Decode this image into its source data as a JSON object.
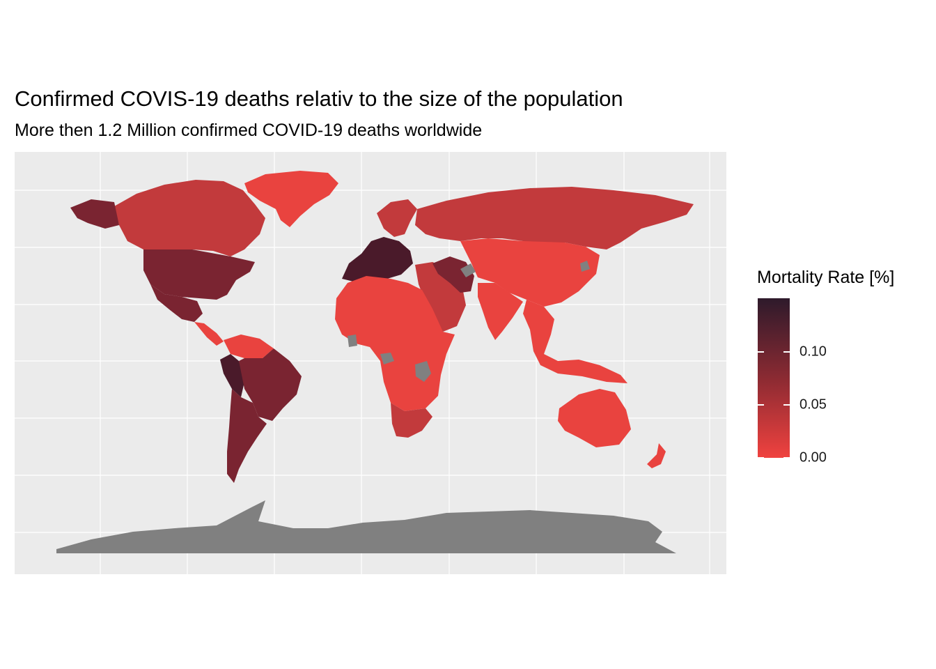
{
  "title": "Confirmed COVIS-19 deaths relativ to the size of the population",
  "subtitle": "More then 1.2 Million confirmed COVID-19 deaths worldwide",
  "legend": {
    "title": "Mortality Rate [%]",
    "labels": [
      "0.10",
      "0.05",
      "0.00"
    ],
    "gradient_top": "#2e1a2b",
    "gradient_mid": "#8b2a32",
    "gradient_bottom": "#f0423f"
  },
  "colors": {
    "panel_background": "#ebebeb",
    "gridline": "#ffffff",
    "no_data": "#808080",
    "low": "#e9433f",
    "medium": "#c23a3c",
    "high": "#7a2431",
    "very_high": "#4a1a2a"
  },
  "map_regions": [
    {
      "name": "Alaska (USA)",
      "rate_class": "high"
    },
    {
      "name": "Canada",
      "rate_class": "medium"
    },
    {
      "name": "Greenland",
      "rate_class": "low"
    },
    {
      "name": "USA",
      "rate_class": "high"
    },
    {
      "name": "Mexico",
      "rate_class": "high"
    },
    {
      "name": "Central America",
      "rate_class": "low"
    },
    {
      "name": "Northern South America",
      "rate_class": "low"
    },
    {
      "name": "Brazil",
      "rate_class": "high"
    },
    {
      "name": "Peru",
      "rate_class": "very_high"
    },
    {
      "name": "Argentina",
      "rate_class": "high"
    },
    {
      "name": "Western Europe",
      "rate_class": "very_high"
    },
    {
      "name": "Scandinavia",
      "rate_class": "medium"
    },
    {
      "name": "Russia",
      "rate_class": "medium"
    },
    {
      "name": "China",
      "rate_class": "low"
    },
    {
      "name": "India",
      "rate_class": "low"
    },
    {
      "name": "Iran",
      "rate_class": "high"
    },
    {
      "name": "Middle East",
      "rate_class": "medium"
    },
    {
      "name": "Africa",
      "rate_class": "low"
    },
    {
      "name": "South Africa",
      "rate_class": "medium"
    },
    {
      "name": "Southeast Asia",
      "rate_class": "low"
    },
    {
      "name": "Australia",
      "rate_class": "low"
    },
    {
      "name": "New Zealand",
      "rate_class": "low"
    },
    {
      "name": "Antarctica",
      "rate_class": "no_data"
    }
  ]
}
